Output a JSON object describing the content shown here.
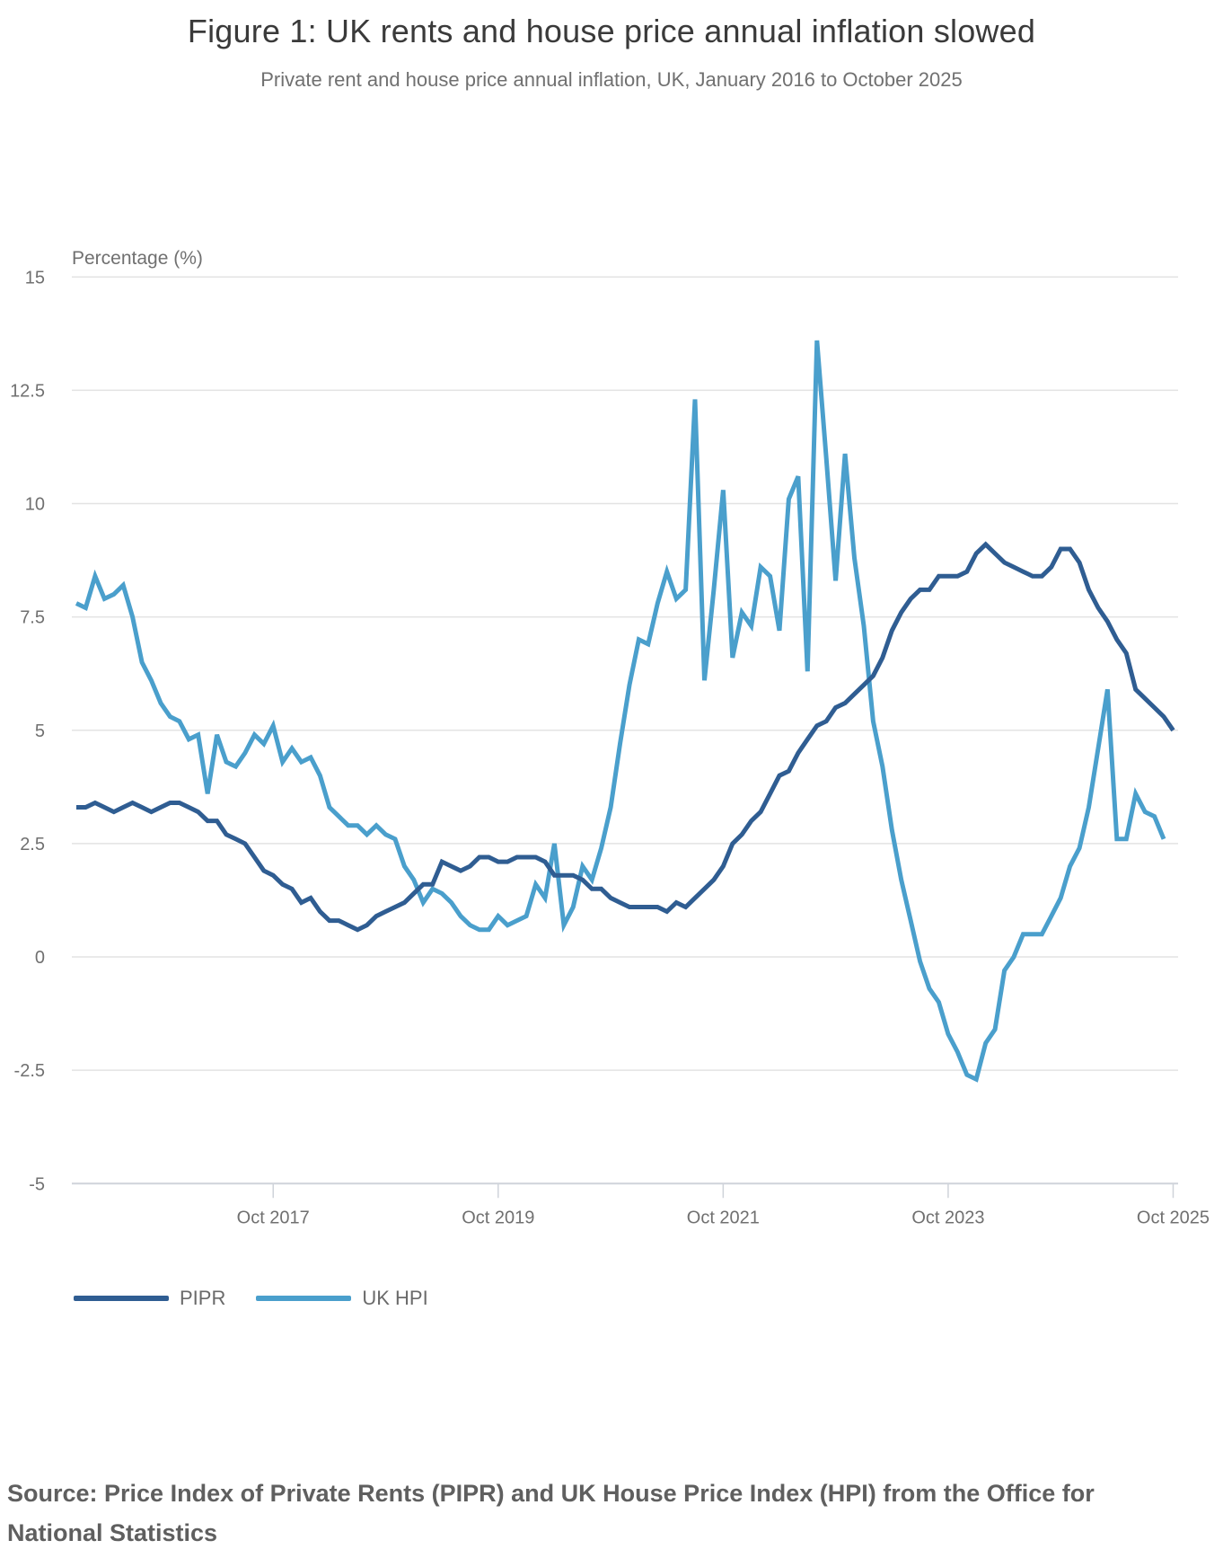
{
  "header": {
    "title": "Figure 1: UK rents and house price annual inflation slowed",
    "subtitle": "Private rent and house price annual inflation, UK, January 2016 to October 2025"
  },
  "axis": {
    "y_title": "Percentage (%)",
    "y_ticks": [
      "15",
      "12.5",
      "10",
      "7.5",
      "5",
      "2.5",
      "0",
      "-2.5",
      "-5"
    ],
    "x_ticks": [
      "Oct 2017",
      "Oct 2019",
      "Oct 2021",
      "Oct 2023",
      "Oct 2025"
    ]
  },
  "legend": {
    "items": [
      {
        "label": "PIPR",
        "color": "#2f5d92"
      },
      {
        "label": "UK HPI",
        "color": "#4a9fcc"
      }
    ]
  },
  "footer": {
    "source": "Source: Price Index of Private Rents (PIPR) and UK House Price Index (HPI) from the Office for National Statistics"
  },
  "chart_data": {
    "type": "line",
    "title": "Figure 1: UK rents and house price annual inflation slowed",
    "subtitle": "Private rent and house price annual inflation, UK, January 2016 to October 2025",
    "xlabel": "",
    "ylabel": "Percentage (%)",
    "ylim": [
      -5,
      15
    ],
    "yticks": [
      -5,
      -2.5,
      0,
      2.5,
      5,
      7.5,
      10,
      12.5,
      15
    ],
    "xticks": [
      "Oct 2017",
      "Oct 2019",
      "Oct 2021",
      "Oct 2023",
      "Oct 2025"
    ],
    "x_start": "Jan 2016",
    "x_frequency": "monthly",
    "grid": "horizontal",
    "legend_position": "bottom-left",
    "series": [
      {
        "name": "PIPR",
        "color": "#2f5d92",
        "start": "Jan 2016",
        "end": "Oct 2025",
        "values": [
          3.3,
          3.3,
          3.4,
          3.3,
          3.2,
          3.3,
          3.4,
          3.3,
          3.2,
          3.3,
          3.4,
          3.4,
          3.3,
          3.2,
          3.0,
          3.0,
          2.7,
          2.6,
          2.5,
          2.2,
          1.9,
          1.8,
          1.6,
          1.5,
          1.2,
          1.3,
          1.0,
          0.8,
          0.8,
          0.7,
          0.6,
          0.7,
          0.9,
          1.0,
          1.1,
          1.2,
          1.4,
          1.6,
          1.6,
          2.1,
          2.0,
          1.9,
          2.0,
          2.2,
          2.2,
          2.1,
          2.1,
          2.2,
          2.2,
          2.2,
          2.1,
          1.8,
          1.8,
          1.8,
          1.7,
          1.5,
          1.5,
          1.3,
          1.2,
          1.1,
          1.1,
          1.1,
          1.1,
          1.0,
          1.2,
          1.1,
          1.3,
          1.5,
          1.7,
          2.0,
          2.5,
          2.7,
          3.0,
          3.2,
          3.6,
          4.0,
          4.1,
          4.5,
          4.8,
          5.1,
          5.2,
          5.5,
          5.6,
          5.8,
          6.0,
          6.2,
          6.6,
          7.2,
          7.6,
          7.9,
          8.1,
          8.1,
          8.4,
          8.4,
          8.4,
          8.5,
          8.9,
          9.1,
          8.9,
          8.7,
          8.6,
          8.5,
          8.4,
          8.4,
          8.6,
          9.0,
          9.0,
          8.7,
          8.1,
          7.7,
          7.4,
          7.0,
          6.7,
          5.9,
          5.7,
          5.5,
          5.3,
          5.0
        ]
      },
      {
        "name": "UK HPI",
        "color": "#4a9fcc",
        "start": "Jan 2016",
        "end": "Sep 2025",
        "values": [
          7.8,
          7.7,
          8.4,
          7.9,
          8.0,
          8.2,
          7.5,
          6.5,
          6.1,
          5.6,
          5.3,
          5.2,
          4.8,
          4.9,
          3.6,
          4.9,
          4.3,
          4.2,
          4.5,
          4.9,
          4.7,
          5.1,
          4.3,
          4.6,
          4.3,
          4.4,
          4.0,
          3.3,
          3.1,
          2.9,
          2.9,
          2.7,
          2.9,
          2.7,
          2.6,
          2.0,
          1.7,
          1.2,
          1.5,
          1.4,
          1.2,
          0.9,
          0.7,
          0.6,
          0.6,
          0.9,
          0.7,
          0.8,
          0.9,
          1.6,
          1.3,
          2.5,
          0.7,
          1.1,
          2.0,
          1.7,
          2.4,
          3.3,
          4.7,
          6.0,
          7.0,
          6.9,
          7.8,
          8.5,
          7.9,
          8.1,
          12.3,
          6.1,
          8.1,
          10.3,
          6.6,
          7.6,
          7.3,
          8.6,
          8.4,
          7.2,
          10.1,
          10.6,
          6.3,
          13.6,
          11.0,
          8.3,
          11.1,
          8.8,
          7.3,
          5.2,
          4.2,
          2.8,
          1.7,
          0.8,
          -0.1,
          -0.7,
          -1.0,
          -1.7,
          -2.1,
          -2.6,
          -2.7,
          -1.9,
          -1.6,
          -0.3,
          0.0,
          0.5,
          0.5,
          0.5,
          0.9,
          1.3,
          2.0,
          2.4,
          3.3,
          4.6,
          5.9,
          2.6,
          2.6,
          3.6,
          3.2,
          3.1,
          2.6
        ]
      }
    ]
  }
}
